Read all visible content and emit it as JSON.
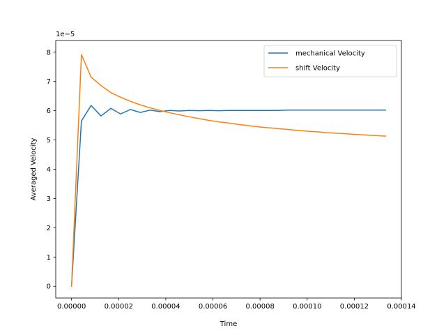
{
  "chart_data": {
    "type": "line",
    "title": "",
    "xlabel": "Time",
    "ylabel": "Averaged Velocity",
    "y_offset_text": "1e−5",
    "xlim": [
      -6.7e-06,
      0.00014
    ],
    "ylim": [
      -0.4,
      8.4
    ],
    "x_ticks": [
      0,
      2e-05,
      4e-05,
      6e-05,
      8e-05,
      0.0001,
      0.00012,
      0.00014
    ],
    "x_tick_labels": [
      "0.00000",
      "0.00002",
      "0.00004",
      "0.00006",
      "0.00008",
      "0.00010",
      "0.00012",
      "0.00014"
    ],
    "y_ticks": [
      0,
      1,
      2,
      3,
      4,
      5,
      6,
      7,
      8
    ],
    "y_tick_labels": [
      "0",
      "1",
      "2",
      "3",
      "4",
      "5",
      "6",
      "7",
      "8"
    ],
    "grid": false,
    "legend_position": "top-right",
    "x": [
      0,
      4.2e-06,
      8.3e-06,
      1.25e-05,
      1.67e-05,
      2.08e-05,
      2.5e-05,
      2.92e-05,
      3.33e-05,
      3.75e-05,
      4.17e-05,
      4.58e-05,
      5e-05,
      5.42e-05,
      5.83e-05,
      6.25e-05,
      6.67e-05,
      7.08e-05,
      7.5e-05,
      7.92e-05,
      8.33e-05,
      8.75e-05,
      9.17e-05,
      9.58e-05,
      0.0001,
      0.0001042,
      0.0001083,
      0.0001125,
      0.0001167,
      0.0001208,
      0.000125,
      0.0001292,
      0.0001333
    ],
    "series": [
      {
        "name": "mechanical Velocity",
        "color": "#1f77b4",
        "values": [
          0,
          5.65,
          6.18,
          5.82,
          6.08,
          5.89,
          6.04,
          5.94,
          6.02,
          5.97,
          6.01,
          5.99,
          6.01,
          6.0,
          6.01,
          6.0,
          6.01,
          6.01,
          6.01,
          6.01,
          6.01,
          6.01,
          6.02,
          6.02,
          6.02,
          6.02,
          6.02,
          6.02,
          6.02,
          6.02,
          6.02,
          6.02,
          6.02
        ]
      },
      {
        "name": "shift Velocity",
        "color": "#ff7f0e",
        "values": [
          0,
          7.92,
          7.15,
          6.86,
          6.62,
          6.46,
          6.32,
          6.2,
          6.1,
          6.01,
          5.93,
          5.86,
          5.79,
          5.73,
          5.67,
          5.62,
          5.58,
          5.53,
          5.49,
          5.45,
          5.42,
          5.39,
          5.36,
          5.33,
          5.3,
          5.28,
          5.25,
          5.23,
          5.21,
          5.19,
          5.17,
          5.15,
          5.13
        ]
      }
    ]
  }
}
